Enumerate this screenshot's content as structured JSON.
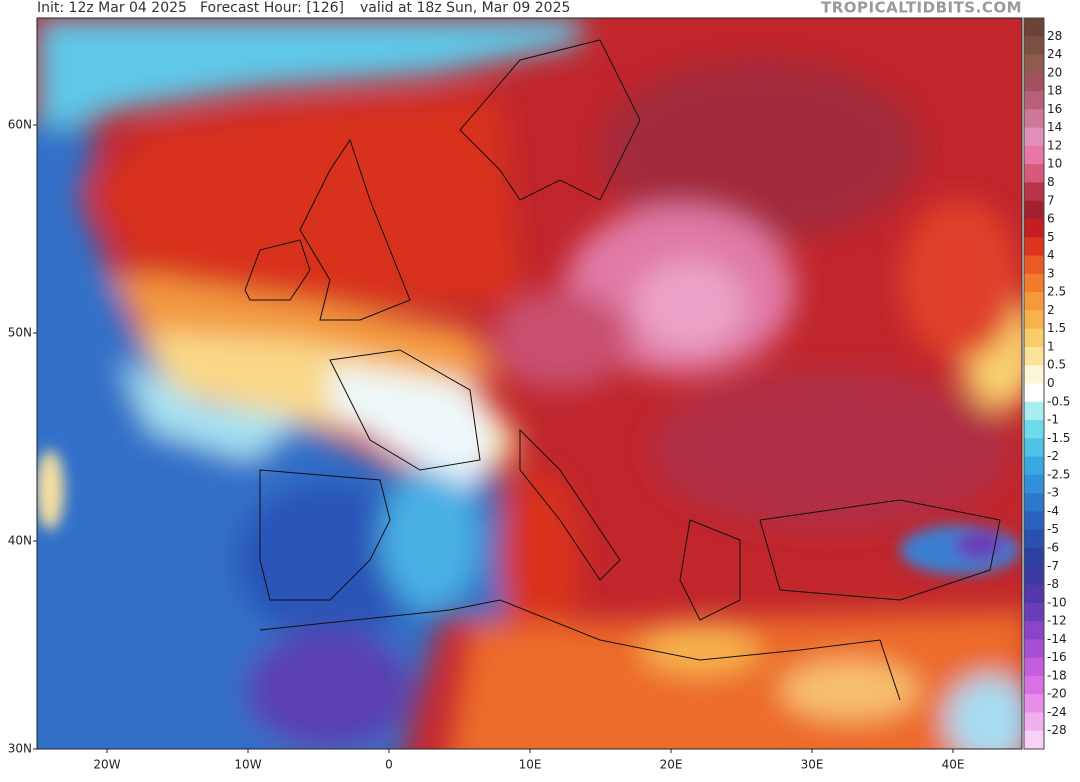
{
  "header": {
    "init": "Init: 12z Mar 04 2025",
    "forecast_hour": "Forecast Hour: [126]",
    "valid": "valid at 18z Sun, Mar 09 2025",
    "watermark": "TROPICALTIDBITS.COM"
  },
  "map": {
    "lat_labels": [
      "60N",
      "50N",
      "40N",
      "30N"
    ],
    "lon_labels": [
      "20W",
      "10W",
      "0",
      "10E",
      "20E",
      "30E",
      "40E"
    ]
  },
  "colorbar": {
    "levels": [
      28,
      24,
      20,
      18,
      16,
      14,
      12,
      10,
      8,
      7,
      6,
      5,
      4,
      3,
      2.5,
      2,
      1.5,
      1,
      0.5,
      0,
      -0.5,
      -1,
      -1.5,
      -2,
      -2.5,
      -3,
      -4,
      -5,
      -6,
      -7,
      -8,
      -10,
      -12,
      -14,
      -16,
      -18,
      -20,
      -24,
      -28
    ],
    "colors": [
      "#6b4434",
      "#7d4f40",
      "#8f5a4d",
      "#a3505f",
      "#b7607a",
      "#cc7a98",
      "#e08fb8",
      "#e977a6",
      "#d65a7c",
      "#b8324a",
      "#a3202f",
      "#c41e24",
      "#dc3522",
      "#eb5a24",
      "#f27c2c",
      "#f59a3a",
      "#f7b24e",
      "#f9cc6c",
      "#fbe39a",
      "#fdf6d8",
      "#ffffff",
      "#a8eef0",
      "#6fdbea",
      "#4ec3e6",
      "#3aa8e0",
      "#3390d8",
      "#2e78cc",
      "#2a62bd",
      "#2a4fae",
      "#2c40a0",
      "#3a3a9e",
      "#5238a8",
      "#6a3cb8",
      "#8a44c8",
      "#a64ed4",
      "#c35ede",
      "#d872e4",
      "#e690ea",
      "#f0b0f0",
      "#f8d0f8"
    ]
  }
}
